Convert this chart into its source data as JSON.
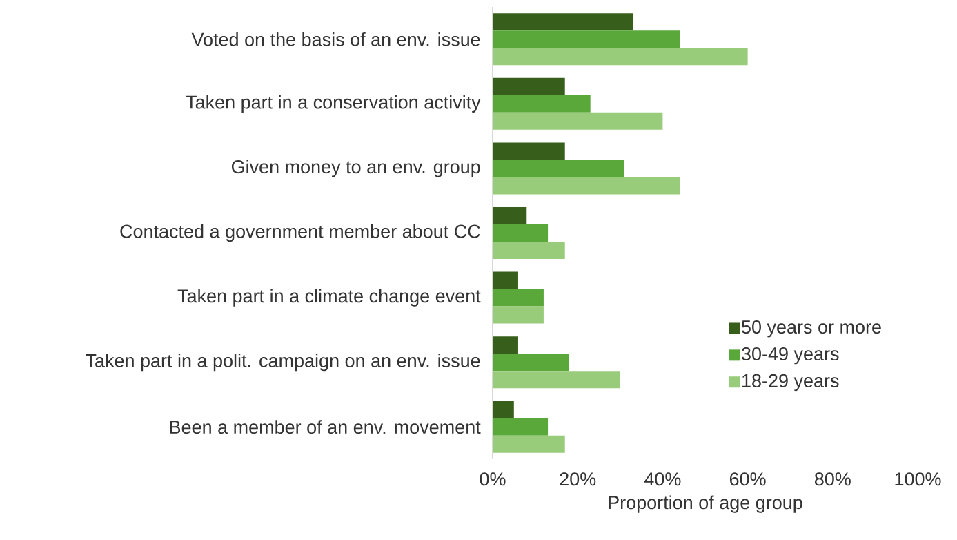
{
  "chart_data": {
    "type": "bar",
    "orientation": "horizontal",
    "xlabel": "Proportion of age group",
    "categories": [
      "Voted on the basis of an env. issue",
      "Taken part in a conservation activity",
      "Given money to an env. group",
      "Contacted a government member about CC",
      "Taken part in a climate change event",
      "Taken part in a polit. campaign on an env. issue",
      "Been a member of an env. movement"
    ],
    "series": [
      {
        "name": "50 years or more",
        "color": "#375f1b",
        "values": [
          33,
          17,
          17,
          8,
          6,
          6,
          5
        ]
      },
      {
        "name": "30-49 years",
        "color": "#5aa83a",
        "values": [
          44,
          23,
          31,
          13,
          12,
          18,
          13
        ]
      },
      {
        "name": "18-29 years",
        "color": "#98cc7a",
        "values": [
          60,
          40,
          44,
          17,
          12,
          30,
          17
        ]
      }
    ],
    "xlim": [
      0,
      100
    ],
    "xticks": [
      {
        "value": 0,
        "label": "0%"
      },
      {
        "value": 20,
        "label": "20%"
      },
      {
        "value": 40,
        "label": "40%"
      },
      {
        "value": 60,
        "label": "60%"
      },
      {
        "value": 80,
        "label": "80%"
      },
      {
        "value": 100,
        "label": "100%"
      }
    ],
    "legend": "right",
    "grid": false
  }
}
